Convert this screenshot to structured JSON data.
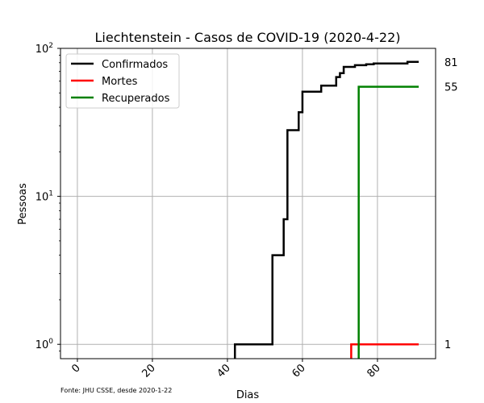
{
  "chart_data": {
    "type": "line",
    "title": "Liechtenstein - Casos de COVID-19 (2020-4-22)",
    "xlabel": "Dias",
    "ylabel": "Pessoas",
    "yscale": "log",
    "xlim": [
      -4.5,
      95.5
    ],
    "ylim": [
      0.8,
      100
    ],
    "grid": true,
    "legend_position": "upper left",
    "x_ticks": [
      "0",
      "20",
      "40",
      "60",
      "80"
    ],
    "x_tick_values": [
      0,
      20,
      40,
      60,
      80
    ],
    "y_ticks": [
      {
        "value": 1,
        "base": "10",
        "exp": "0"
      },
      {
        "value": 10,
        "base": "10",
        "exp": "1"
      },
      {
        "value": 100,
        "base": "10",
        "exp": "2"
      }
    ],
    "series": [
      {
        "name": "Confirmados",
        "color": "#000000",
        "x": [
          42,
          51,
          52,
          54,
          55,
          56,
          58,
          59,
          60,
          62,
          65,
          67,
          69,
          70,
          71,
          72,
          74,
          75,
          77,
          78,
          79,
          80,
          85,
          88,
          90,
          91
        ],
        "y": [
          1,
          1,
          4,
          4,
          7,
          28,
          28,
          37,
          51,
          51,
          56,
          56,
          64,
          68,
          75,
          75,
          77,
          77,
          78,
          78,
          79,
          79,
          79,
          81,
          81,
          81
        ]
      },
      {
        "name": "Mortes",
        "color": "#ff0000",
        "x": [
          73,
          74,
          91
        ],
        "y": [
          1,
          1,
          1
        ]
      },
      {
        "name": "Recuperados",
        "color": "#008000",
        "x": [
          75,
          91
        ],
        "y": [
          55,
          55
        ]
      }
    ],
    "end_labels": [
      "81",
      "55",
      "1"
    ],
    "end_label_values": [
      81,
      55,
      1
    ],
    "source": "Fonte: JHU CSSE, desde 2020-1-22"
  }
}
